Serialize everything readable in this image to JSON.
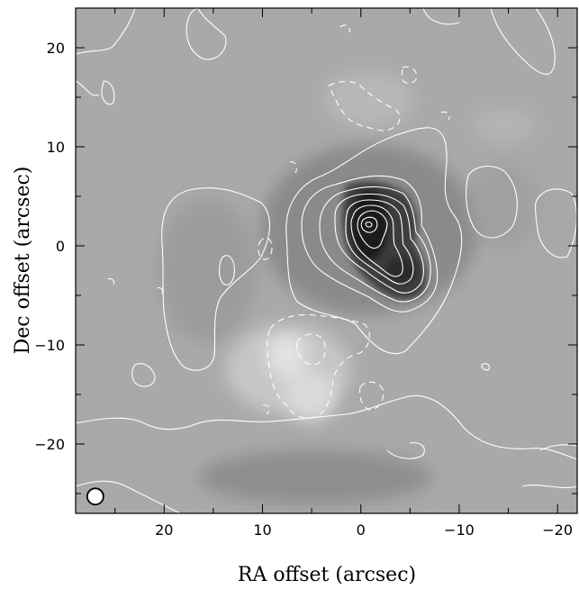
{
  "chart_data": {
    "type": "heatmap",
    "title": "",
    "xlabel": "RA offset (arcsec)",
    "ylabel": "Dec offset (arcsec)",
    "xlim": [
      29,
      -22
    ],
    "ylim": [
      -27,
      24
    ],
    "x_ticks": [
      20,
      10,
      0,
      -10,
      -20
    ],
    "y_ticks": [
      20,
      10,
      0,
      -10,
      -20
    ],
    "x_tick_labels": [
      "20",
      "10",
      "0",
      "−10",
      "−20"
    ],
    "y_tick_labels": [
      "20",
      "10",
      "0",
      "−10",
      "−20"
    ],
    "colormap": "grayscale (darker = higher emission)",
    "background_color": "#a9a9a9",
    "contour_color": "#ffffff",
    "contours": {
      "positive_levels": "solid",
      "negative_levels": "dashed"
    },
    "peak": {
      "x": 0,
      "y": 2
    },
    "features": [
      {
        "name": "bright emission peak",
        "x": -1.5,
        "y": 1.5
      },
      {
        "name": "negative depression",
        "x": 5,
        "y": -13
      }
    ],
    "beam": {
      "x": 27,
      "y": -25.3,
      "diameter_arcsec": 1.7,
      "shape": "circle"
    }
  }
}
